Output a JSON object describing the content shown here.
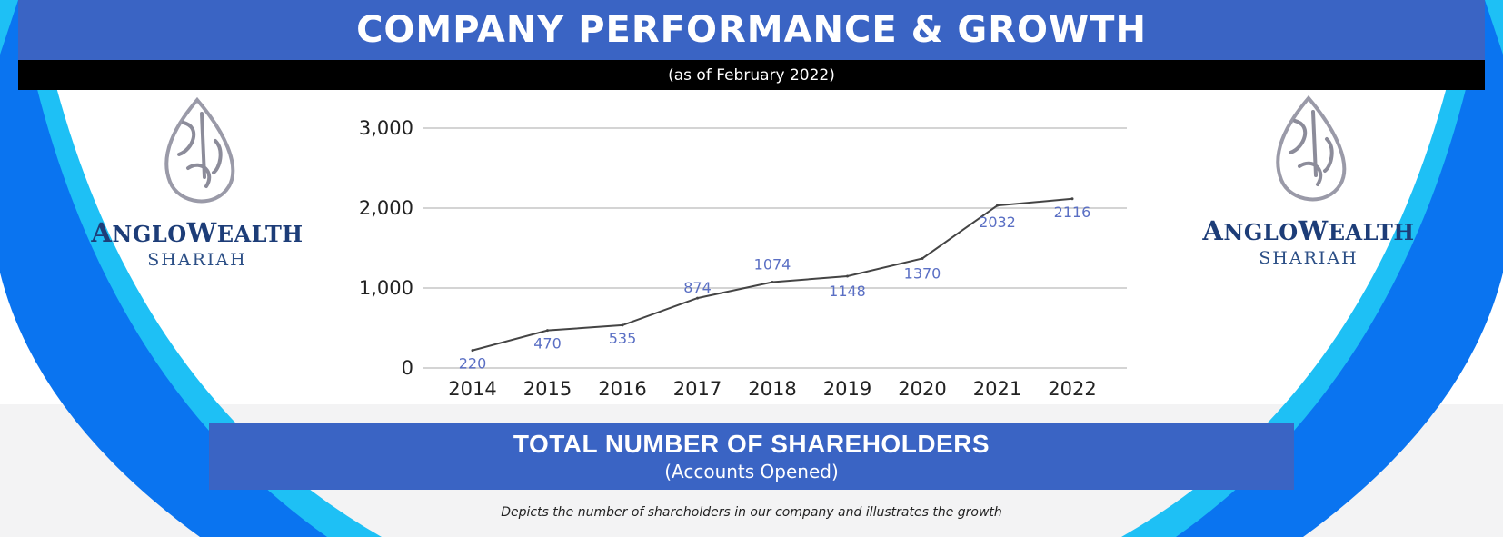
{
  "header": {
    "title": "COMPANY PERFORMANCE & GROWTH",
    "subtitle": "(as of February 2022)"
  },
  "logo": {
    "brand_first": "A",
    "brand_mid": "NGLO",
    "brand_second": "W",
    "brand_end": "EALTH",
    "sub": "SHARIAH"
  },
  "footer": {
    "title": "TOTAL NUMBER OF SHAREHOLDERS",
    "subtitle": "(Accounts Opened)",
    "caption": "Depicts the number of shareholders in our company and illustrates the growth"
  },
  "colors": {
    "primary_blue": "#3a64c4",
    "accent_blue": "#0a74f0",
    "light_blue": "#1ec0f5",
    "label_blue": "#5a6fc4",
    "line": "#444444"
  },
  "chart_data": {
    "type": "line",
    "title": "TOTAL NUMBER OF SHAREHOLDERS",
    "xlabel": "",
    "ylabel": "",
    "categories": [
      "2014",
      "2015",
      "2016",
      "2017",
      "2018",
      "2019",
      "2020",
      "2021",
      "2022"
    ],
    "values": [
      220,
      470,
      535,
      874,
      1074,
      1148,
      1370,
      2032,
      2116
    ],
    "data_labels": [
      "220",
      "470",
      "535",
      "874",
      "1074",
      "1148",
      "1370",
      "2032",
      "2116"
    ],
    "yticks": [
      0,
      1000,
      2000,
      3000
    ],
    "ytick_labels": [
      "0",
      "1,000",
      "2,000",
      "3,000"
    ],
    "ylim": [
      0,
      3000
    ],
    "grid": true,
    "legend": "none"
  }
}
